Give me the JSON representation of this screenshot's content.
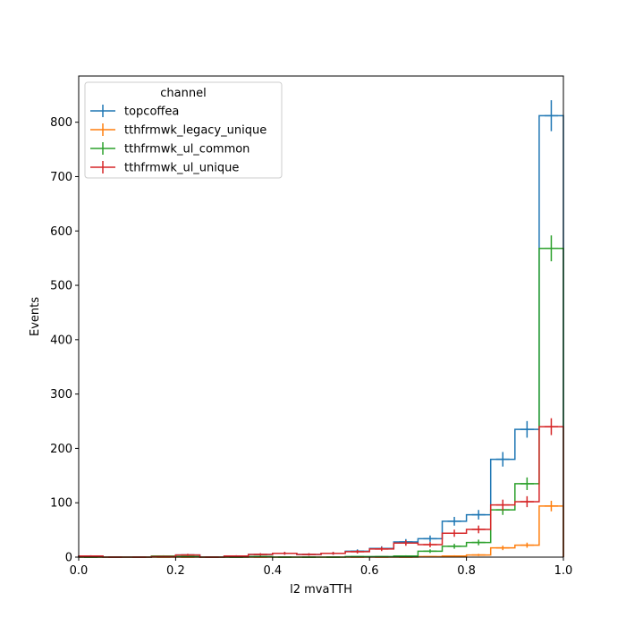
{
  "chart_data": {
    "type": "line",
    "subtype": "step-histogram-with-errorbars",
    "xlabel": "l2 mvaTTH",
    "ylabel": "Events",
    "xlim": [
      0.0,
      1.0
    ],
    "ylim": [
      0,
      885
    ],
    "x_ticks": [
      "0.0",
      "0.2",
      "0.4",
      "0.6",
      "0.8",
      "1.0"
    ],
    "y_ticks": [
      "0",
      "100",
      "200",
      "300",
      "400",
      "500",
      "600",
      "700",
      "800"
    ],
    "grid": false,
    "legend": {
      "title": "channel",
      "position": "top-left"
    },
    "bin_edges": [
      0.0,
      0.05,
      0.1,
      0.15,
      0.2,
      0.25,
      0.3,
      0.35,
      0.4,
      0.45,
      0.5,
      0.55,
      0.6,
      0.65,
      0.7,
      0.75,
      0.8,
      0.85,
      0.9,
      0.95,
      1.0
    ],
    "series": [
      {
        "name": "topcoffea",
        "color": "#1f77b4",
        "values": [
          2,
          0,
          0,
          1,
          4,
          0,
          2,
          5,
          7,
          5,
          7,
          11,
          16,
          28,
          34,
          66,
          78,
          180,
          235,
          812
        ],
        "errors": [
          1.4,
          0,
          0,
          1,
          2,
          0,
          1.4,
          2.2,
          2.6,
          2.2,
          2.6,
          3.3,
          4,
          5.3,
          5.8,
          8.1,
          8.8,
          13.4,
          15.3,
          28.5
        ]
      },
      {
        "name": "tthfrmwk_legacy_unique",
        "color": "#ff7f0e",
        "values": [
          0,
          0,
          0,
          0,
          0,
          0,
          0,
          0,
          0,
          0,
          0,
          0,
          0,
          0,
          1,
          2,
          4,
          17,
          22,
          94
        ],
        "errors": [
          0,
          0,
          0,
          0,
          0,
          0,
          0,
          0,
          0,
          0,
          0,
          0,
          0,
          0,
          1,
          1.4,
          2,
          4.1,
          4.7,
          9.7
        ]
      },
      {
        "name": "tthfrmwk_ul_common",
        "color": "#2ca02c",
        "values": [
          0,
          0,
          0,
          2,
          1,
          0,
          0,
          1,
          0,
          0,
          0,
          1,
          1,
          2,
          11,
          20,
          27,
          87,
          135,
          568
        ],
        "errors": [
          0,
          0,
          0,
          1.4,
          1,
          0,
          0,
          1,
          0,
          0,
          0,
          1,
          1,
          1.4,
          3.3,
          4.5,
          5.2,
          9.3,
          11.6,
          23.8
        ]
      },
      {
        "name": "tthfrmwk_ul_unique",
        "color": "#d62728",
        "values": [
          2,
          0,
          0,
          1,
          4,
          0,
          2,
          5,
          7,
          5,
          7,
          10,
          15,
          26,
          23,
          44,
          51,
          96,
          102,
          240
        ],
        "errors": [
          1.4,
          0,
          0,
          1,
          2,
          0,
          1.4,
          2.2,
          2.6,
          2.2,
          2.6,
          3.2,
          3.9,
          5.1,
          4.8,
          6.6,
          7.1,
          9.8,
          10.1,
          15.5
        ]
      }
    ]
  }
}
